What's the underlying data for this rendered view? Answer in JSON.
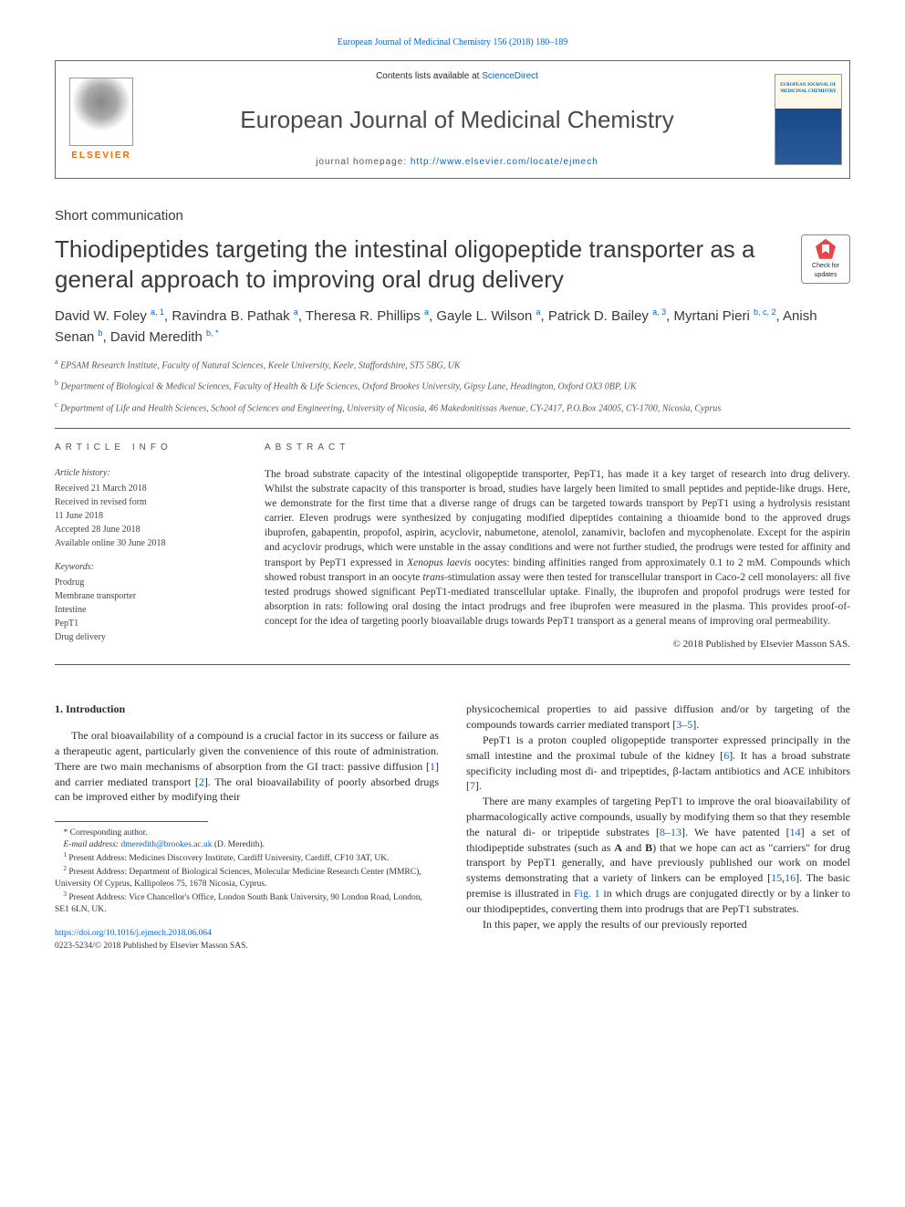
{
  "top_link": {
    "label": "European Journal of Medicinal Chemistry 156 (2018) 180–189"
  },
  "header": {
    "elsevier": "ELSEVIER",
    "contents_prefix": "Contents lists available at ",
    "contents_link": "ScienceDirect",
    "journal_name": "European Journal of Medicinal Chemistry",
    "homepage_label": "journal homepage: ",
    "homepage_url": "http://www.elsevier.com/locate/ejmech",
    "cover_title": "EUROPEAN JOURNAL OF MEDICINAL CHEMISTRY"
  },
  "article_type": "Short communication",
  "title": "Thiodipeptides targeting the intestinal oligopeptide transporter as a general approach to improving oral drug delivery",
  "updates_badge": "Check for updates",
  "authors": [
    {
      "name": "David W. Foley",
      "marks": "a, 1"
    },
    {
      "name": "Ravindra B. Pathak",
      "marks": "a"
    },
    {
      "name": "Theresa R. Phillips",
      "marks": "a"
    },
    {
      "name": "Gayle L. Wilson",
      "marks": "a"
    },
    {
      "name": "Patrick D. Bailey",
      "marks": "a, 3"
    },
    {
      "name": "Myrtani Pieri",
      "marks": "b, c, 2"
    },
    {
      "name": "Anish Senan",
      "marks": "b"
    },
    {
      "name": "David Meredith",
      "marks": "b, *"
    }
  ],
  "affiliations": [
    {
      "mark": "a",
      "text": "EPSAM Research Institute, Faculty of Natural Sciences, Keele University, Keele, Staffordshire, ST5 5BG, UK"
    },
    {
      "mark": "b",
      "text": "Department of Biological & Medical Sciences, Faculty of Health & Life Sciences, Oxford Brookes University, Gipsy Lane, Headington, Oxford OX3 0BP, UK"
    },
    {
      "mark": "c",
      "text": "Department of Life and Health Sciences, School of Sciences and Engineering, University of Nicosia, 46 Makedonitissas Avenue, CY-2417, P.O.Box 24005, CY-1700, Nicosia, Cyprus"
    }
  ],
  "article_info": {
    "heading": "ARTICLE INFO",
    "history_label": "Article history:",
    "history": "Received 21 March 2018\nReceived in revised form\n11 June 2018\nAccepted 28 June 2018\nAvailable online 30 June 2018",
    "keywords_label": "Keywords:",
    "keywords": [
      "Prodrug",
      "Membrane transporter",
      "Intestine",
      "PepT1",
      "Drug delivery"
    ]
  },
  "abstract": {
    "heading": "ABSTRACT",
    "text": "The broad substrate capacity of the intestinal oligopeptide transporter, PepT1, has made it a key target of research into drug delivery. Whilst the substrate capacity of this transporter is broad, studies have largely been limited to small peptides and peptide-like drugs. Here, we demonstrate for the first time that a diverse range of drugs can be targeted towards transport by PepT1 using a hydrolysis resistant carrier. Eleven prodrugs were synthesized by conjugating modified dipeptides containing a thioamide bond to the approved drugs ibuprofen, gabapentin, propofol, aspirin, acyclovir, nabumetone, atenolol, zanamivir, baclofen and mycophenolate. Except for the aspirin and acyclovir prodrugs, which were unstable in the assay conditions and were not further studied, the prodrugs were tested for affinity and transport by PepT1 expressed in Xenopus laevis oocytes: binding affinities ranged from approximately 0.1 to 2 mM. Compounds which showed robust transport in an oocyte trans-stimulation assay were then tested for transcellular transport in Caco-2 cell monolayers: all five tested prodrugs showed significant PepT1-mediated transcellular uptake. Finally, the ibuprofen and propofol prodrugs were tested for absorption in rats: following oral dosing the intact prodrugs and free ibuprofen were measured in the plasma. This provides proof-of-concept for the idea of targeting poorly bioavailable drugs towards PepT1 transport as a general means of improving oral permeability.",
    "copyright": "© 2018 Published by Elsevier Masson SAS."
  },
  "sections": {
    "intro_heading": "1. Introduction",
    "col1_p1": "The oral bioavailability of a compound is a crucial factor in its success or failure as a therapeutic agent, particularly given the convenience of this route of administration. There are two main mechanisms of absorption from the GI tract: passive diffusion [1] and carrier mediated transport [2]. The oral bioavailability of poorly absorbed drugs can be improved either by modifying their",
    "col2_p1": "physicochemical properties to aid passive diffusion and/or by targeting of the compounds towards carrier mediated transport [3–5].",
    "col2_p2": "PepT1 is a proton coupled oligopeptide transporter expressed principally in the small intestine and the proximal tubule of the kidney [6]. It has a broad substrate specificity including most di- and tripeptides, β-lactam antibiotics and ACE inhibitors [7].",
    "col2_p3": "There are many examples of targeting PepT1 to improve the oral bioavailability of pharmacologically active compounds, usually by modifying them so that they resemble the natural di- or tripeptide substrates [8–13]. We have patented [14] a set of thiodipeptide substrates (such as A and B) that we hope can act as \"carriers\" for drug transport by PepT1 generally, and have previously published our work on model systems demonstrating that a variety of linkers can be employed [15,16]. The basic premise is illustrated in Fig. 1 in which drugs are conjugated directly or by a linker to our thiodipeptides, converting them into prodrugs that are PepT1 substrates.",
    "col2_p4": "In this paper, we apply the results of our previously reported"
  },
  "footnotes": {
    "corr": "* Corresponding author.",
    "email_label": "E-mail address: ",
    "email": "dmeredith@brookes.ac.uk",
    "email_suffix": " (D. Meredith).",
    "fn1": "Present Address: Medicines Discovery Institute, Cardiff University, Cardiff, CF10 3AT, UK.",
    "fn2": "Present Address: Department of Biological Sciences, Molecular Medicine Research Center (MMRC), University Of Cyprus, Kallipoleos 75, 1678 Nicosia, Cyprus.",
    "fn3": "Present Address: Vice Chancellor's Office, London South Bank University, 90 London Road, London, SE1 6LN, UK."
  },
  "doi": {
    "url": "https://doi.org/10.1016/j.ejmech.2018.06.064",
    "issn_line": "0223-5234/© 2018 Published by Elsevier Masson SAS."
  },
  "colors": {
    "link": "#0066cc",
    "elsevier_orange": "#ff6600",
    "text": "#2a2a2a",
    "rule": "#555555"
  }
}
